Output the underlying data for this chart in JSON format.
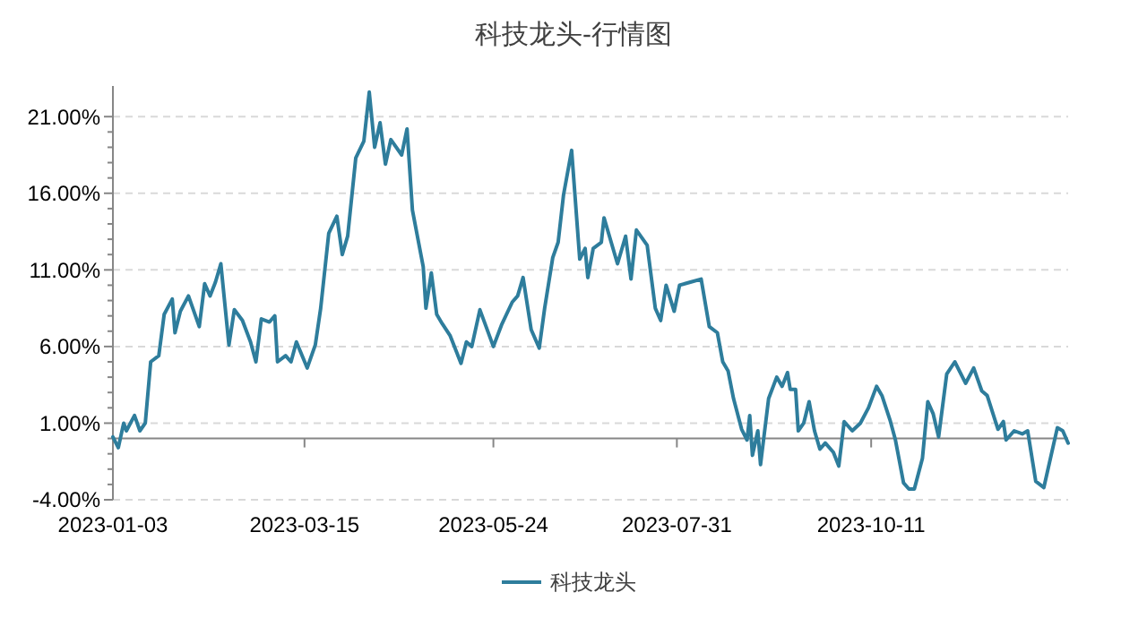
{
  "chart_data": {
    "type": "line",
    "title": "科技龙头-行情图",
    "xlim": [
      "2023-01-03",
      "2023-12-23"
    ],
    "xticks": [
      {
        "value": "2023-01-03",
        "label": "2023-01-03"
      },
      {
        "value": "2023-03-15",
        "label": "2023-03-15"
      },
      {
        "value": "2023-05-24",
        "label": "2023-05-24"
      },
      {
        "value": "2023-07-31",
        "label": "2023-07-31"
      },
      {
        "value": "2023-10-11",
        "label": "2023-10-11"
      }
    ],
    "ylim": [
      -4,
      23
    ],
    "yticks": [
      {
        "value": -4,
        "label": "-4.00%"
      },
      {
        "value": 1,
        "label": "1.00%"
      },
      {
        "value": 6,
        "label": "6.00%"
      },
      {
        "value": 11,
        "label": "11.00%"
      },
      {
        "value": 16,
        "label": "16.00%"
      },
      {
        "value": 21,
        "label": "21.00%"
      }
    ],
    "grid": "y",
    "legend": "bottom",
    "marker": "none",
    "line_style": "solid",
    "x": [
      "2023-01-03",
      "2023-01-05",
      "2023-01-07",
      "2023-01-08",
      "2023-01-11",
      "2023-01-13",
      "2023-01-15",
      "2023-01-17",
      "2023-01-20",
      "2023-01-22",
      "2023-01-25",
      "2023-01-26",
      "2023-01-28",
      "2023-01-31",
      "2023-02-04",
      "2023-02-06",
      "2023-02-08",
      "2023-02-10",
      "2023-02-12",
      "2023-02-15",
      "2023-02-17",
      "2023-02-20",
      "2023-02-23",
      "2023-02-25",
      "2023-02-27",
      "2023-03-02",
      "2023-03-04",
      "2023-03-05",
      "2023-03-08",
      "2023-03-10",
      "2023-03-12",
      "2023-03-16",
      "2023-03-19",
      "2023-03-21",
      "2023-03-24",
      "2023-03-27",
      "2023-03-29",
      "2023-03-31",
      "2023-04-03",
      "2023-04-06",
      "2023-04-08",
      "2023-04-10",
      "2023-04-12",
      "2023-04-14",
      "2023-04-16",
      "2023-04-20",
      "2023-04-22",
      "2023-04-24",
      "2023-04-28",
      "2023-04-29",
      "2023-05-01",
      "2023-05-03",
      "2023-05-05",
      "2023-05-08",
      "2023-05-12",
      "2023-05-14",
      "2023-05-16",
      "2023-05-19",
      "2023-05-24",
      "2023-05-27",
      "2023-05-31",
      "2023-06-02",
      "2023-06-04",
      "2023-06-07",
      "2023-06-10",
      "2023-06-12",
      "2023-06-15",
      "2023-06-17",
      "2023-06-19",
      "2023-06-22",
      "2023-06-25",
      "2023-06-27",
      "2023-06-28",
      "2023-06-30",
      "2023-07-03",
      "2023-07-04",
      "2023-07-07",
      "2023-07-09",
      "2023-07-12",
      "2023-07-14",
      "2023-07-16",
      "2023-07-20",
      "2023-07-23",
      "2023-07-25",
      "2023-07-27",
      "2023-07-30",
      "2023-08-01",
      "2023-08-05",
      "2023-08-09",
      "2023-08-12",
      "2023-08-15",
      "2023-08-17",
      "2023-08-19",
      "2023-08-21",
      "2023-08-24",
      "2023-08-26",
      "2023-08-27",
      "2023-08-28",
      "2023-08-30",
      "2023-08-31",
      "2023-09-03",
      "2023-09-06",
      "2023-09-08",
      "2023-09-10",
      "2023-09-11",
      "2023-09-13",
      "2023-09-14",
      "2023-09-16",
      "2023-09-18",
      "2023-09-20",
      "2023-09-22",
      "2023-09-24",
      "2023-09-27",
      "2023-09-29",
      "2023-10-01",
      "2023-10-04",
      "2023-10-07",
      "2023-10-10",
      "2023-10-13",
      "2023-10-15",
      "2023-10-18",
      "2023-10-20",
      "2023-10-23",
      "2023-10-25",
      "2023-10-27",
      "2023-10-30",
      "2023-11-01",
      "2023-11-03",
      "2023-11-05",
      "2023-11-08",
      "2023-11-11",
      "2023-11-15",
      "2023-11-18",
      "2023-11-21",
      "2023-11-23",
      "2023-11-27",
      "2023-11-29",
      "2023-11-30",
      "2023-12-03",
      "2023-12-06",
      "2023-12-08",
      "2023-12-11",
      "2023-12-14",
      "2023-12-19",
      "2023-12-21",
      "2023-12-23"
    ],
    "series": [
      {
        "name": "科技龙头",
        "color": "#2e7d9c",
        "values": [
          0.1,
          -0.6,
          1.0,
          0.5,
          1.5,
          0.5,
          1.0,
          5.0,
          5.4,
          8.1,
          9.1,
          6.9,
          8.3,
          9.3,
          7.3,
          10.1,
          9.3,
          10.2,
          11.4,
          6.1,
          8.4,
          7.7,
          6.3,
          5.0,
          7.8,
          7.6,
          8.0,
          5.0,
          5.4,
          5.0,
          6.3,
          4.6,
          6.1,
          8.5,
          13.4,
          14.5,
          12.0,
          13.2,
          18.3,
          19.4,
          22.6,
          19.0,
          20.6,
          17.9,
          19.5,
          18.5,
          20.2,
          14.9,
          11.2,
          8.5,
          10.8,
          8.1,
          7.5,
          6.7,
          4.9,
          6.3,
          6.0,
          8.4,
          6.0,
          7.4,
          8.9,
          9.3,
          10.5,
          7.1,
          5.9,
          8.5,
          11.8,
          12.8,
          15.9,
          18.8,
          11.7,
          12.4,
          10.5,
          12.4,
          12.8,
          14.4,
          12.6,
          11.4,
          13.2,
          10.4,
          13.6,
          12.6,
          8.5,
          7.7,
          10.0,
          8.3,
          10.0,
          10.2,
          10.4,
          7.3,
          6.9,
          5.0,
          4.4,
          2.6,
          0.6,
          -0.1,
          1.5,
          -1.1,
          0.5,
          -1.7,
          2.6,
          4.0,
          3.4,
          4.3,
          3.2,
          3.2,
          0.5,
          1.0,
          2.4,
          0.5,
          -0.7,
          -0.3,
          -0.9,
          -1.8,
          1.1,
          0.5,
          1.0,
          2.0,
          3.4,
          2.8,
          1.2,
          -0.1,
          -2.9,
          -3.3,
          -3.3,
          -1.3,
          2.4,
          1.6,
          0.1,
          4.2,
          5.0,
          3.6,
          4.6,
          3.1,
          2.8,
          0.6,
          1.1,
          -0.1,
          0.5,
          0.3,
          0.5,
          -2.8,
          -3.2,
          0.7,
          0.5,
          -0.3
        ]
      }
    ]
  }
}
